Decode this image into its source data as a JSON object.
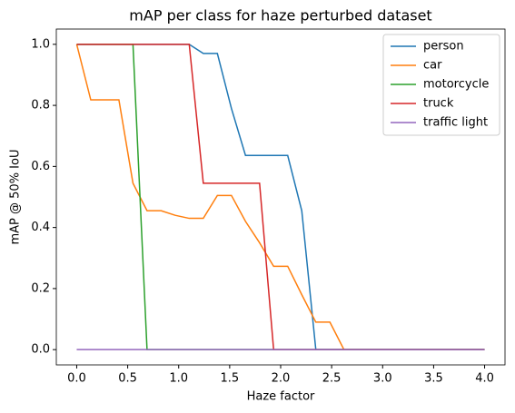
{
  "chart_data": {
    "type": "line",
    "title": "mAP per class for haze perturbed dataset",
    "x_label": "Haze factor",
    "y_label": "mAP @ 50% IoU",
    "x": [
      0,
      0.1379,
      0.2759,
      0.4138,
      0.5517,
      0.6897,
      0.8276,
      0.9655,
      1.1034,
      1.2414,
      1.3793,
      1.5172,
      1.6552,
      1.7931,
      1.931,
      2.069,
      2.2069,
      2.3448,
      2.4828,
      2.6207,
      2.7586,
      2.8966,
      3.0345,
      3.1724,
      3.3103,
      3.4483,
      3.5862,
      3.7241,
      3.8621,
      4
    ],
    "series": [
      {
        "name": "person",
        "color": "#1f77b4",
        "values": [
          1,
          1,
          1,
          1,
          1,
          1,
          1,
          1,
          1,
          0.97,
          0.97,
          0.79,
          0.636,
          0.636,
          0.636,
          0.636,
          0.455,
          0,
          0,
          0,
          0,
          0,
          0,
          0,
          0,
          0,
          0,
          0,
          0,
          0
        ]
      },
      {
        "name": "car",
        "color": "#ff7f0e",
        "values": [
          1,
          0.818,
          0.818,
          0.818,
          0.545,
          0.455,
          0.455,
          0.44,
          0.43,
          0.43,
          0.505,
          0.505,
          0.42,
          0.35,
          0.273,
          0.273,
          0.18,
          0.09,
          0.09,
          0,
          0,
          0,
          0,
          0,
          0,
          0,
          0,
          0,
          0,
          0
        ]
      },
      {
        "name": "motorcycle",
        "color": "#2ca02c",
        "values": [
          1,
          1,
          1,
          1,
          1,
          0,
          0,
          0,
          0,
          0,
          0,
          0,
          0,
          0,
          0,
          0,
          0,
          0,
          0,
          0,
          0,
          0,
          0,
          0,
          0,
          0,
          0,
          0,
          0,
          0
        ]
      },
      {
        "name": "truck",
        "color": "#d62728",
        "values": [
          1,
          1,
          1,
          1,
          1,
          1,
          1,
          1,
          1,
          0.545,
          0.545,
          0.545,
          0.545,
          0.545,
          0,
          0,
          0,
          0,
          0,
          0,
          0,
          0,
          0,
          0,
          0,
          0,
          0,
          0,
          0,
          0
        ]
      },
      {
        "name": "traffic light",
        "color": "#9467bd",
        "values": [
          0,
          0,
          0,
          0,
          0,
          0,
          0,
          0,
          0,
          0,
          0,
          0,
          0,
          0,
          0,
          0,
          0,
          0,
          0,
          0,
          0,
          0,
          0,
          0,
          0,
          0,
          0,
          0,
          0,
          0
        ]
      }
    ],
    "xlim": [
      -0.2,
      4.2
    ],
    "xticks": [
      {
        "value": 0,
        "label": "0.0"
      },
      0.5,
      {
        "value": 1,
        "label": "1.0"
      },
      1.5,
      {
        "value": 2,
        "label": "2.0"
      },
      2.5,
      {
        "value": 3,
        "label": "3.0"
      },
      3.5,
      {
        "value": 4,
        "label": "4.0"
      }
    ],
    "ylim": [
      -0.05,
      1.05
    ],
    "yticks": [
      {
        "value": 0,
        "label": "0.0"
      },
      0.2,
      0.4,
      0.6,
      0.8,
      {
        "value": 1,
        "label": "1.0"
      }
    ],
    "grid": false,
    "legend": "upper right"
  }
}
